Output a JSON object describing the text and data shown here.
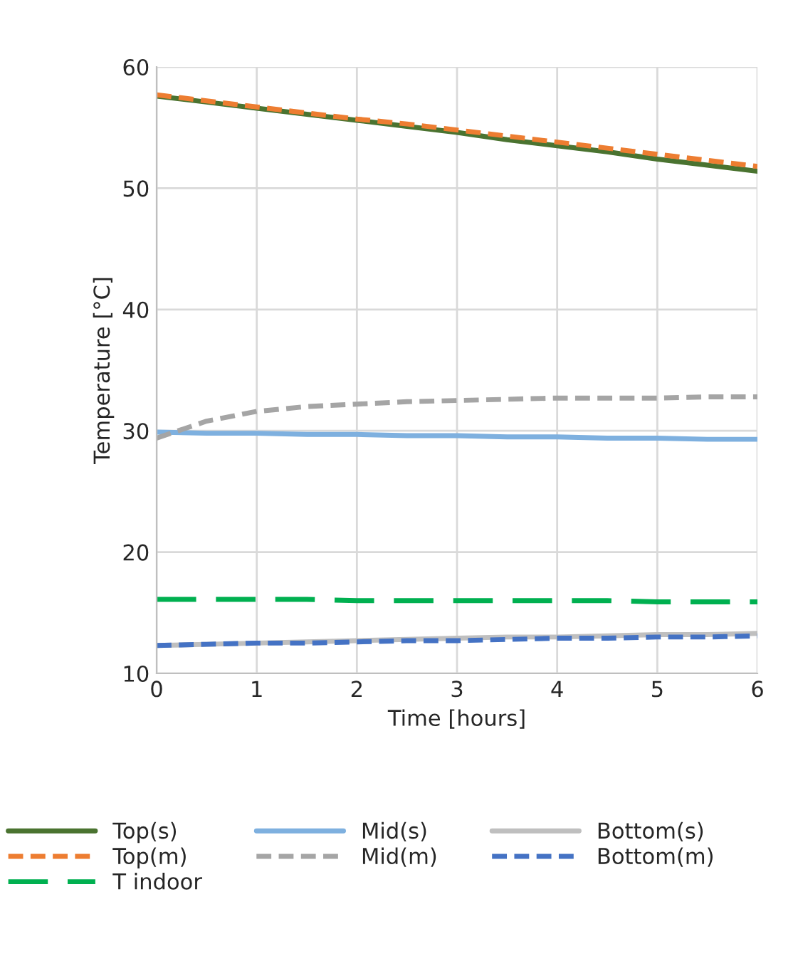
{
  "chart_data": {
    "type": "line",
    "xlabel": "Time [hours]",
    "ylabel": "Temperature [°C]",
    "x": [
      0,
      0.5,
      1,
      1.5,
      2,
      2.5,
      3,
      3.5,
      4,
      4.5,
      5,
      5.5,
      6
    ],
    "xlim": [
      0,
      6
    ],
    "xticks": [
      0,
      1,
      2,
      3,
      4,
      5,
      6
    ],
    "ylim": [
      10,
      60
    ],
    "yticks": [
      10,
      20,
      30,
      40,
      50,
      60
    ],
    "grid": true,
    "legend": "bottom",
    "series": [
      {
        "name": "Top(s)",
        "color": "#4a7330",
        "line_style": "solid",
        "values": [
          57.6,
          57.1,
          56.6,
          56.1,
          55.6,
          55.1,
          54.6,
          54.0,
          53.5,
          53.0,
          52.4,
          51.9,
          51.4
        ]
      },
      {
        "name": "Top(m)",
        "color": "#ed7d31",
        "line_style": "dashed",
        "values": [
          57.7,
          57.2,
          56.7,
          56.2,
          55.7,
          55.3,
          54.8,
          54.3,
          53.8,
          53.3,
          52.8,
          52.3,
          51.8
        ]
      },
      {
        "name": "T indoor",
        "color": "#00b050",
        "line_style": "longdash",
        "values": [
          16.1,
          16.1,
          16.1,
          16.1,
          16.0,
          16.0,
          16.0,
          16.0,
          16.0,
          16.0,
          15.9,
          15.9,
          15.9
        ]
      },
      {
        "name": "Mid(s)",
        "color": "#7eb0df",
        "line_style": "solid",
        "values": [
          29.9,
          29.8,
          29.8,
          29.7,
          29.7,
          29.6,
          29.6,
          29.5,
          29.5,
          29.4,
          29.4,
          29.3,
          29.3
        ]
      },
      {
        "name": "Mid(m)",
        "color": "#a5a5a5",
        "line_style": "dashed",
        "values": [
          29.4,
          30.8,
          31.6,
          32.0,
          32.2,
          32.4,
          32.5,
          32.6,
          32.7,
          32.7,
          32.7,
          32.8,
          32.8
        ]
      },
      {
        "name": "Bottom(s)",
        "color": "#bfbfbf",
        "line_style": "solid",
        "values": [
          12.3,
          12.4,
          12.5,
          12.6,
          12.7,
          12.8,
          12.9,
          13.0,
          13.0,
          13.1,
          13.2,
          13.2,
          13.3
        ]
      },
      {
        "name": "Bottom(m)",
        "color": "#4472c4",
        "line_style": "dashed",
        "values": [
          12.3,
          12.4,
          12.5,
          12.5,
          12.6,
          12.7,
          12.7,
          12.8,
          12.9,
          12.9,
          13.0,
          13.0,
          13.1
        ]
      }
    ]
  }
}
